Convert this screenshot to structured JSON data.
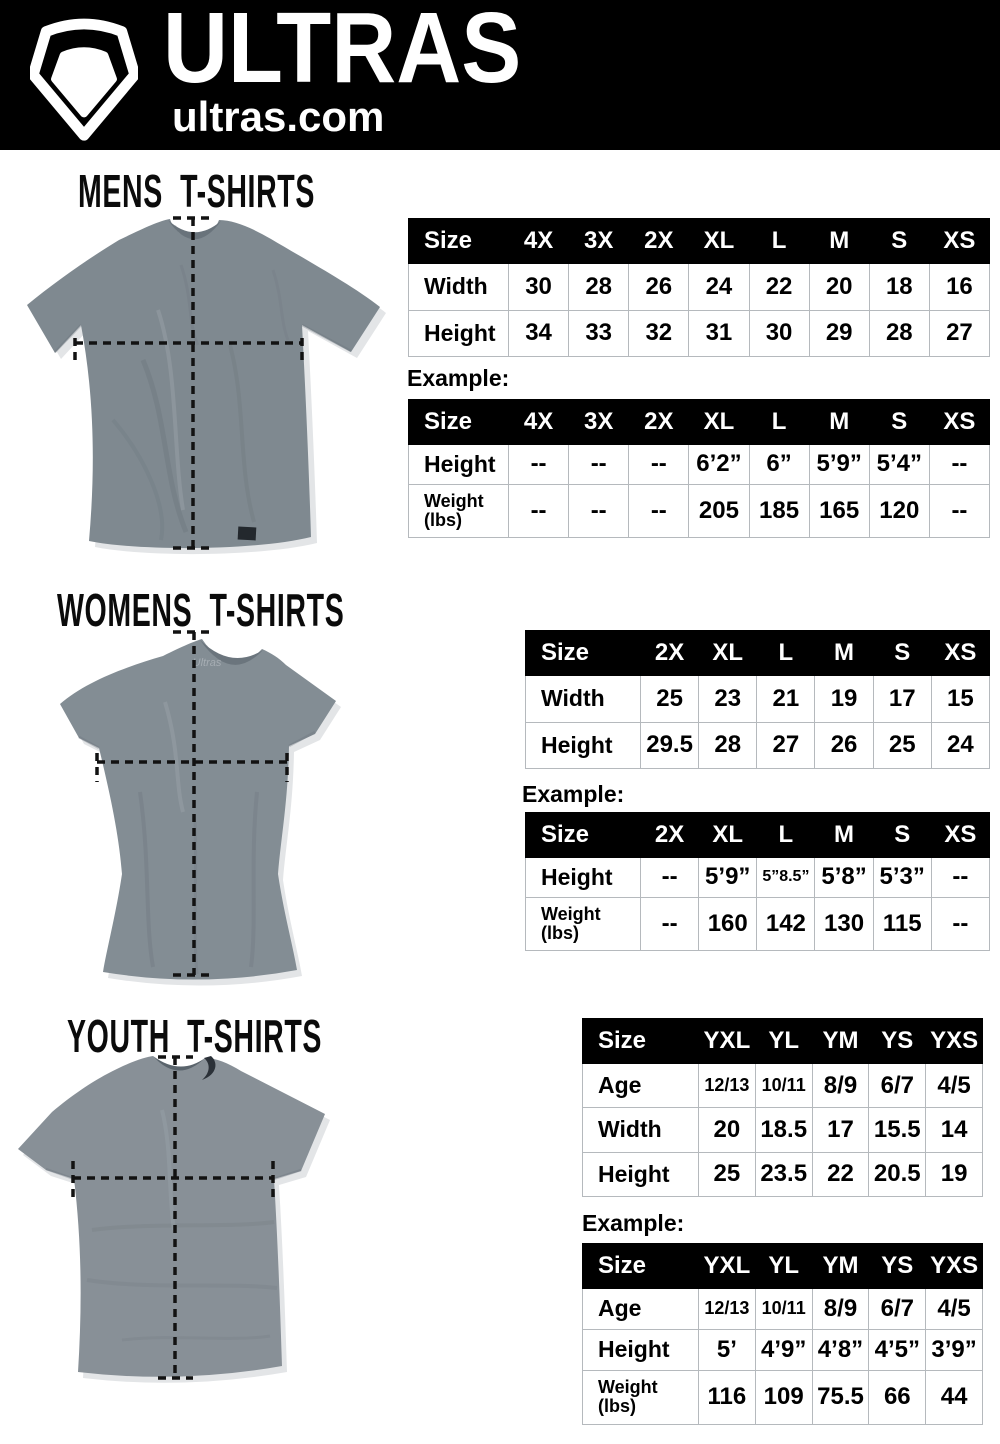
{
  "header": {
    "brand": "ULTRAS",
    "site": "ultras.com",
    "logo_icon": "pentagon-shield-icon"
  },
  "colors": {
    "header_bg": "#000000",
    "table_header_bg": "#000000",
    "table_border": "#b5b9bd",
    "shirt_gray": "#7f8990"
  },
  "sections": [
    {
      "id": "mens",
      "title": "MENS T-SHIRTS",
      "example_label": "Example:",
      "size_table": {
        "header": [
          "Size",
          "4X",
          "3X",
          "2X",
          "XL",
          "L",
          "M",
          "S",
          "XS"
        ],
        "rows": [
          {
            "label": "Width",
            "values": [
              "30",
              "28",
              "26",
              "24",
              "22",
              "20",
              "18",
              "16"
            ]
          },
          {
            "label": "Height",
            "values": [
              "34",
              "33",
              "32",
              "31",
              "30",
              "29",
              "28",
              "27"
            ]
          }
        ]
      },
      "example_table": {
        "header": [
          "Size",
          "4X",
          "3X",
          "2X",
          "XL",
          "L",
          "M",
          "S",
          "XS"
        ],
        "rows": [
          {
            "label": "Height",
            "values": [
              "--",
              "--",
              "--",
              "6’2”",
              "6”",
              "5’9”",
              "5’4”",
              "--"
            ]
          },
          {
            "label": "Weight\n(lbs)",
            "values": [
              "--",
              "--",
              "--",
              "205",
              "185",
              "165",
              "120",
              "--"
            ]
          }
        ]
      }
    },
    {
      "id": "womens",
      "title": "WOMENS T-SHIRTS",
      "example_label": "Example:",
      "size_table": {
        "header": [
          "Size",
          "2X",
          "XL",
          "L",
          "M",
          "S",
          "XS"
        ],
        "rows": [
          {
            "label": "Width",
            "values": [
              "25",
              "23",
              "21",
              "19",
              "17",
              "15"
            ]
          },
          {
            "label": "Height",
            "values": [
              "29.5",
              "28",
              "27",
              "26",
              "25",
              "24"
            ]
          }
        ]
      },
      "example_table": {
        "header": [
          "Size",
          "2X",
          "XL",
          "L",
          "M",
          "S",
          "XS"
        ],
        "rows": [
          {
            "label": "Height",
            "values": [
              "--",
              "5’9”",
              "5”8.5”",
              "5’8”",
              "5’3”",
              "--"
            ]
          },
          {
            "label": "Weight\n(lbs)",
            "values": [
              "--",
              "160",
              "142",
              "130",
              "115",
              "--"
            ]
          }
        ]
      }
    },
    {
      "id": "youth",
      "title": "YOUTH T-SHIRTS",
      "example_label": "Example:",
      "size_table": {
        "header": [
          "Size",
          "YXL",
          "YL",
          "YM",
          "YS",
          "YXS"
        ],
        "rows": [
          {
            "label": "Age",
            "values": [
              "12/13",
              "10/11",
              "8/9",
              "6/7",
              "4/5"
            ]
          },
          {
            "label": "Width",
            "values": [
              "20",
              "18.5",
              "17",
              "15.5",
              "14"
            ]
          },
          {
            "label": "Height",
            "values": [
              "25",
              "23.5",
              "22",
              "20.5",
              "19"
            ]
          }
        ]
      },
      "example_table": {
        "header": [
          "Size",
          "YXL",
          "YL",
          "YM",
          "YS",
          "YXS"
        ],
        "rows": [
          {
            "label": "Age",
            "values": [
              "12/13",
              "10/11",
              "8/9",
              "6/7",
              "4/5"
            ]
          },
          {
            "label": "Height",
            "values": [
              "5’",
              "4’9”",
              "4’8”",
              "4’5”",
              "3’9”"
            ]
          },
          {
            "label": "Weight\n(lbs)",
            "values": [
              "116",
              "109",
              "75.5",
              "66",
              "44"
            ]
          }
        ]
      }
    }
  ]
}
